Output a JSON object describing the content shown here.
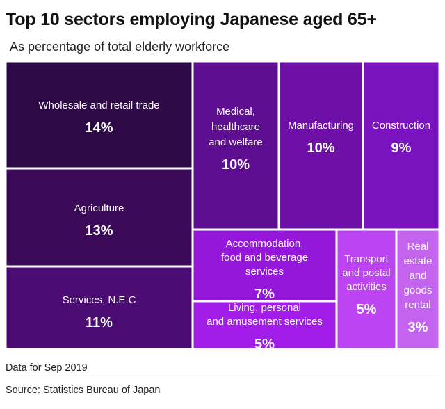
{
  "title": "Top 10 sectors employing Japanese aged 65+",
  "subtitle": "As percentage of total elderly workforce",
  "footnote": "Data for Sep 2019",
  "source": "Source: Statistics Bureau of Japan",
  "chart_data": {
    "type": "treemap",
    "title": "Top 10 sectors employing Japanese aged 65+",
    "subtitle": "As percentage of total elderly workforce",
    "unit": "%",
    "items": [
      {
        "label": "Wholesale and retail trade",
        "value": 14,
        "value_label": "14%",
        "color": "#2d0a45"
      },
      {
        "label": "Agriculture",
        "value": 13,
        "value_label": "13%",
        "color": "#3a0a59"
      },
      {
        "label": "Services, N.E.C",
        "value": 11,
        "value_label": "11%",
        "color": "#4a0c72"
      },
      {
        "label": "Medical, healthcare and welfare",
        "value": 10,
        "value_label": "10%",
        "color": "#5e0e91"
      },
      {
        "label": "Manufacturing",
        "value": 10,
        "value_label": "10%",
        "color": "#6e0fa8"
      },
      {
        "label": "Construction",
        "value": 9,
        "value_label": "9%",
        "color": "#7a12bf"
      },
      {
        "label": "Accommodation, food and beverage services",
        "value": 7,
        "value_label": "7%",
        "color": "#9417db"
      },
      {
        "label": "Living, personal and amusement services",
        "value": 5,
        "value_label": "5%",
        "color": "#a21ee8"
      },
      {
        "label": "Transport and postal activities",
        "value": 5,
        "value_label": "5%",
        "color": "#bd44f3"
      },
      {
        "label": "Real estate and goods rental",
        "value": 3,
        "value_label": "3%",
        "color": "#c464ee"
      }
    ]
  }
}
